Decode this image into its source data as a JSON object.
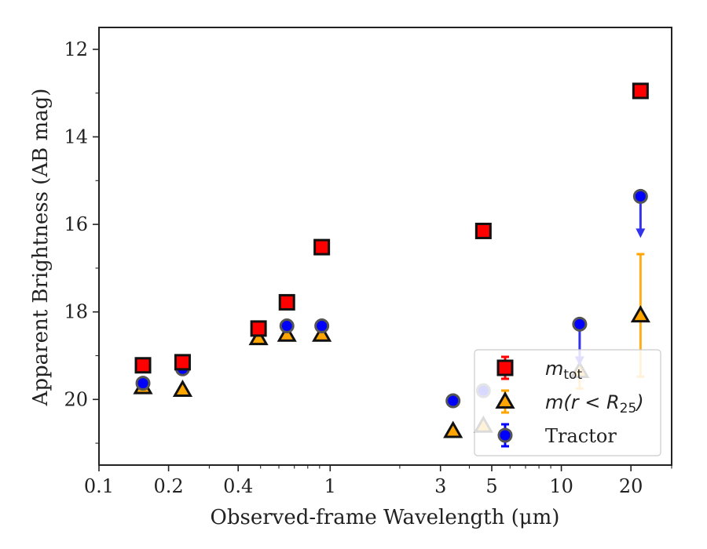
{
  "chart_data": {
    "type": "scatter",
    "xlabel": "Observed-frame Wavelength (μm)",
    "ylabel": "Apparent Brightness (AB mag)",
    "xscale": "log",
    "xlim": [
      0.1,
      30
    ],
    "ylim": [
      21.5,
      11.5
    ],
    "y_inverted": true,
    "grid": false,
    "legend_position": "lower-right",
    "xticks": [
      {
        "value": 0.1,
        "label": "0.1"
      },
      {
        "value": 0.2,
        "label": "0.2"
      },
      {
        "value": 0.4,
        "label": "0.4"
      },
      {
        "value": 1,
        "label": "1"
      },
      {
        "value": 3,
        "label": "3"
      },
      {
        "value": 5,
        "label": "5"
      },
      {
        "value": 10,
        "label": "10"
      },
      {
        "value": 20,
        "label": "20"
      }
    ],
    "yticks": [
      {
        "value": 12,
        "label": "12"
      },
      {
        "value": 14,
        "label": "14"
      },
      {
        "value": 16,
        "label": "16"
      },
      {
        "value": 18,
        "label": "18"
      },
      {
        "value": 20,
        "label": "20"
      }
    ],
    "series": [
      {
        "name_main": "m",
        "name_sub": "tot",
        "marker": "square",
        "color": "#ff0000",
        "edge": "#111111",
        "points": [
          {
            "x": 0.155,
            "y": 19.22
          },
          {
            "x": 0.23,
            "y": 19.15
          },
          {
            "x": 0.49,
            "y": 18.38
          },
          {
            "x": 0.65,
            "y": 17.78
          },
          {
            "x": 0.92,
            "y": 16.52
          },
          {
            "x": 4.6,
            "y": 16.15
          },
          {
            "x": 22.0,
            "y": 12.95
          }
        ]
      },
      {
        "name_main": "m(r < R",
        "name_sub": "25",
        "name_tail": ")",
        "marker": "triangle",
        "color": "#ffa500",
        "edge": "#111111",
        "points": [
          {
            "x": 0.155,
            "y": 19.72
          },
          {
            "x": 0.23,
            "y": 19.78
          },
          {
            "x": 0.49,
            "y": 18.6
          },
          {
            "x": 0.65,
            "y": 18.52
          },
          {
            "x": 0.92,
            "y": 18.52
          },
          {
            "x": 3.4,
            "y": 20.72
          },
          {
            "x": 4.6,
            "y": 20.6
          },
          {
            "x": 12.0,
            "y": 19.35,
            "err_low": 0,
            "err_high": 0.4
          },
          {
            "x": 22.0,
            "y": 18.08,
            "err_low": 1.4,
            "err_high": 1.4
          }
        ]
      },
      {
        "name": "Tractor",
        "marker": "circle",
        "color": "#0000ff",
        "edge": "#555555",
        "points": [
          {
            "x": 0.155,
            "y": 19.63
          },
          {
            "x": 0.23,
            "y": 19.3
          },
          {
            "x": 0.49,
            "y": 18.38
          },
          {
            "x": 0.65,
            "y": 18.32
          },
          {
            "x": 0.92,
            "y": 18.32
          },
          {
            "x": 3.4,
            "y": 20.03
          },
          {
            "x": 4.6,
            "y": 19.8
          },
          {
            "x": 12.0,
            "y": 18.28,
            "upper_limit": true
          },
          {
            "x": 22.0,
            "y": 15.36,
            "upper_limit": true
          }
        ]
      }
    ]
  }
}
